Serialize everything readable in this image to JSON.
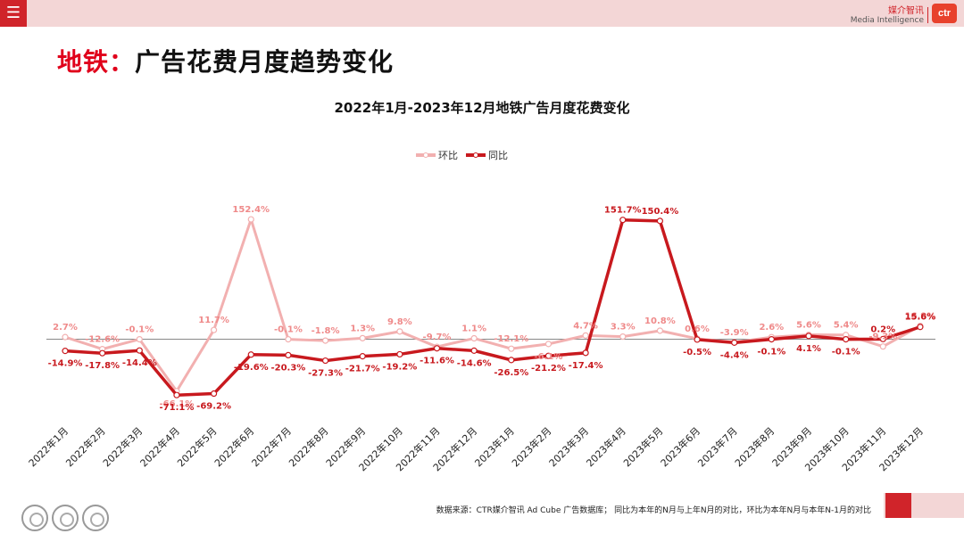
{
  "header": {
    "menu_icon": "hamburger-menu-icon",
    "brand_cn": "媒介智讯",
    "brand_en": "Media Intelligence",
    "brand_logo": "ctr"
  },
  "page_title_prefix": "地铁：",
  "page_title_rest": "广告花费月度趋势变化",
  "footer": {
    "source": "数据来源：CTR媒介智讯 Ad Cube 广告数据库； 同比为本年的N月与上年N月的对比，环比为本年N月与本年N-1月的对比"
  },
  "colors": {
    "accent": "#d0242a",
    "mom": "#f2b0b0",
    "yoy": "#c8191e",
    "top_bar": "#f3d6d6"
  },
  "chart_data": {
    "type": "line",
    "title": "2022年1月-2023年12月地铁广告月度花费变化",
    "legend_position": "top-center",
    "categories": [
      "2022年1月",
      "2022年2月",
      "2022年3月",
      "2022年4月",
      "2022年5月",
      "2022年6月",
      "2022年7月",
      "2022年8月",
      "2022年9月",
      "2022年10月",
      "2022年11月",
      "2022年12月",
      "2023年1月",
      "2023年2月",
      "2023年3月",
      "2023年4月",
      "2023年5月",
      "2023年6月",
      "2023年7月",
      "2023年8月",
      "2023年9月",
      "2023年10月",
      "2023年11月",
      "2023年12月"
    ],
    "ylim": [
      -75,
      160
    ],
    "series": [
      {
        "name": "环比",
        "color": "#f2b0b0",
        "values": [
          2.7,
          -12.6,
          -0.1,
          -66.1,
          11.7,
          152.4,
          -0.1,
          -1.8,
          1.3,
          9.8,
          -9.7,
          1.1,
          -12.1,
          -6.1,
          4.7,
          3.3,
          10.8,
          0.6,
          -3.9,
          2.6,
          5.6,
          5.4,
          -9.3,
          16.9
        ],
        "labels": [
          "2.7%",
          "-12.6%",
          "-0.1%",
          "-66.1%",
          "11.7%",
          "152.4%",
          "-0.1%",
          "-1.8%",
          "1.3%",
          "9.8%",
          "-9.7%",
          "1.1%",
          "-12.1%",
          "-6.1%",
          "4.7%",
          "3.3%",
          "10.8%",
          "0.6%",
          "-3.9%",
          "2.6%",
          "5.6%",
          "5.4%",
          "-9.3%",
          "16.9%"
        ]
      },
      {
        "name": "同比",
        "color": "#c8191e",
        "values": [
          -14.9,
          -17.8,
          -14.4,
          -71.1,
          -69.2,
          -19.6,
          -20.3,
          -27.3,
          -21.7,
          -19.2,
          -11.6,
          -14.6,
          -26.5,
          -21.2,
          -17.4,
          151.7,
          150.4,
          -0.5,
          -4.4,
          -0.1,
          4.1,
          -0.1,
          0.2,
          15.6
        ],
        "labels": [
          "-14.9%",
          "-17.8%",
          "-14.4%",
          "-71.1%",
          "-69.2%",
          "-19.6%",
          "-20.3%",
          "-27.3%",
          "-21.7%",
          "-19.2%",
          "-11.6%",
          "-14.6%",
          "-26.5%",
          "-21.2%",
          "-17.4%",
          "151.7%",
          "150.4%",
          "-0.5%",
          "-4.4%",
          "-0.1%",
          "4.1%",
          "-0.1%",
          "0.2%",
          "15.6%"
        ]
      }
    ]
  }
}
